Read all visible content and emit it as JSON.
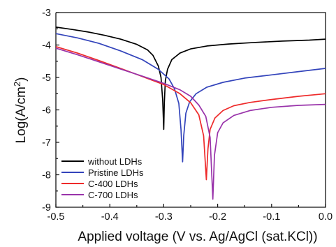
{
  "chart_data": {
    "type": "line",
    "xlabel": "Applied voltage (V vs. Ag/AgCl (sat.KCl))",
    "ylabel": "Log(A/cm",
    "ylabel_sup": "2",
    "ylabel_close": ")",
    "xlim": [
      -0.5,
      0.0
    ],
    "ylim": [
      -9,
      -3
    ],
    "xticks": [
      -0.5,
      -0.4,
      -0.3,
      -0.2,
      -0.1,
      0.0
    ],
    "xtick_labels": [
      "-0.5",
      "-0.4",
      "-0.3",
      "-0.2",
      "-0.1",
      "0.0"
    ],
    "yticks": [
      -9,
      -8,
      -7,
      -6,
      -5,
      -4,
      -3
    ],
    "ytick_labels": [
      "-9",
      "-8",
      "-7",
      "-6",
      "-5",
      "-4",
      "-3"
    ],
    "grid": false,
    "legend_position": "bottom-left",
    "series": [
      {
        "name": "without LDHs",
        "color": "#000000",
        "points": [
          [
            -0.5,
            -3.45
          ],
          [
            -0.47,
            -3.52
          ],
          [
            -0.44,
            -3.6
          ],
          [
            -0.41,
            -3.7
          ],
          [
            -0.38,
            -3.82
          ],
          [
            -0.35,
            -3.98
          ],
          [
            -0.33,
            -4.15
          ],
          [
            -0.32,
            -4.32
          ],
          [
            -0.31,
            -4.65
          ],
          [
            -0.305,
            -5.0
          ],
          [
            -0.302,
            -5.7
          ],
          [
            -0.3,
            -6.6
          ],
          [
            -0.299,
            -5.8
          ],
          [
            -0.297,
            -5.1
          ],
          [
            -0.293,
            -4.75
          ],
          [
            -0.285,
            -4.45
          ],
          [
            -0.27,
            -4.25
          ],
          [
            -0.25,
            -4.12
          ],
          [
            -0.22,
            -4.03
          ],
          [
            -0.18,
            -3.97
          ],
          [
            -0.13,
            -3.92
          ],
          [
            -0.08,
            -3.88
          ],
          [
            -0.03,
            -3.85
          ],
          [
            0.0,
            -3.82
          ]
        ]
      },
      {
        "name": "Pristine LDHs",
        "color": "#3344bb",
        "points": [
          [
            -0.5,
            -3.65
          ],
          [
            -0.46,
            -3.78
          ],
          [
            -0.42,
            -3.95
          ],
          [
            -0.38,
            -4.18
          ],
          [
            -0.34,
            -4.45
          ],
          [
            -0.31,
            -4.75
          ],
          [
            -0.29,
            -5.05
          ],
          [
            -0.28,
            -5.35
          ],
          [
            -0.272,
            -5.8
          ],
          [
            -0.268,
            -6.6
          ],
          [
            -0.265,
            -7.6
          ],
          [
            -0.263,
            -6.8
          ],
          [
            -0.259,
            -6.1
          ],
          [
            -0.252,
            -5.75
          ],
          [
            -0.24,
            -5.5
          ],
          [
            -0.22,
            -5.3
          ],
          [
            -0.19,
            -5.15
          ],
          [
            -0.15,
            -5.02
          ],
          [
            -0.1,
            -4.92
          ],
          [
            -0.05,
            -4.82
          ],
          [
            0.0,
            -4.72
          ]
        ]
      },
      {
        "name": "C-400 LDHs",
        "color": "#ee2a2a",
        "points": [
          [
            -0.5,
            -4.05
          ],
          [
            -0.46,
            -4.25
          ],
          [
            -0.42,
            -4.48
          ],
          [
            -0.38,
            -4.72
          ],
          [
            -0.34,
            -4.97
          ],
          [
            -0.3,
            -5.22
          ],
          [
            -0.27,
            -5.5
          ],
          [
            -0.25,
            -5.78
          ],
          [
            -0.235,
            -6.15
          ],
          [
            -0.226,
            -6.8
          ],
          [
            -0.221,
            -8.15
          ],
          [
            -0.218,
            -7.2
          ],
          [
            -0.214,
            -6.6
          ],
          [
            -0.205,
            -6.25
          ],
          [
            -0.19,
            -6.02
          ],
          [
            -0.17,
            -5.87
          ],
          [
            -0.14,
            -5.77
          ],
          [
            -0.1,
            -5.68
          ],
          [
            -0.05,
            -5.58
          ],
          [
            0.0,
            -5.5
          ]
        ]
      },
      {
        "name": "C-700 LDHs",
        "color": "#9933aa",
        "points": [
          [
            -0.5,
            -4.1
          ],
          [
            -0.46,
            -4.3
          ],
          [
            -0.42,
            -4.52
          ],
          [
            -0.38,
            -4.74
          ],
          [
            -0.34,
            -4.96
          ],
          [
            -0.3,
            -5.18
          ],
          [
            -0.27,
            -5.38
          ],
          [
            -0.25,
            -5.58
          ],
          [
            -0.235,
            -5.85
          ],
          [
            -0.222,
            -6.2
          ],
          [
            -0.214,
            -6.85
          ],
          [
            -0.209,
            -8.75
          ],
          [
            -0.206,
            -7.4
          ],
          [
            -0.2,
            -6.7
          ],
          [
            -0.19,
            -6.4
          ],
          [
            -0.17,
            -6.17
          ],
          [
            -0.14,
            -6.02
          ],
          [
            -0.1,
            -5.92
          ],
          [
            -0.05,
            -5.86
          ],
          [
            0.0,
            -5.83
          ]
        ]
      }
    ]
  }
}
